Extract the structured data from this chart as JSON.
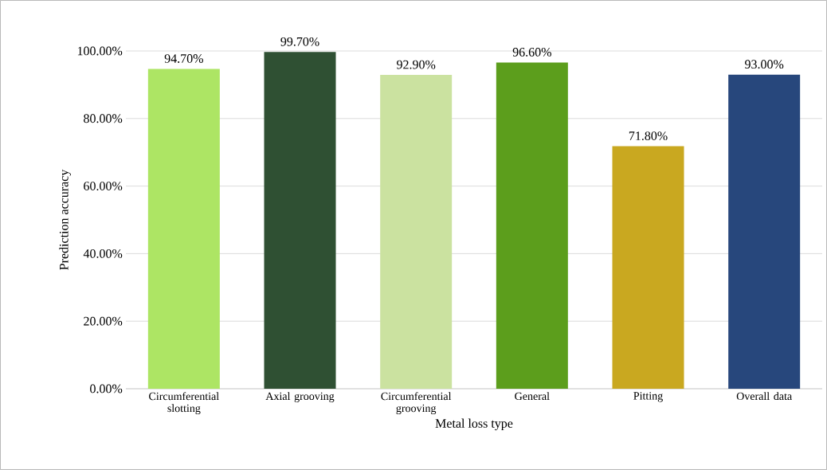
{
  "chart_data": {
    "type": "bar",
    "xlabel": "Metal loss type",
    "ylabel": "Prediction accuracy",
    "categories": [
      "Circumferential slotting",
      "Axial grooving",
      "Circumferential grooving",
      "General",
      "Pitting",
      "Overall data"
    ],
    "values": [
      94.7,
      99.7,
      92.9,
      96.6,
      71.8,
      93.0
    ],
    "colors": [
      "#ade564",
      "#2f5033",
      "#cbe2a0",
      "#5c9e1c",
      "#c9a820",
      "#27477c"
    ],
    "value_labels": [
      "94.70%",
      "99.70%",
      "92.90%",
      "96.60%",
      "71.80%",
      "93.00%"
    ],
    "ylim": [
      0,
      100
    ],
    "yticks": [
      {
        "value": 0,
        "label": "0.00%"
      },
      {
        "value": 20,
        "label": "20.00%"
      },
      {
        "value": 40,
        "label": "40.00%"
      },
      {
        "value": 60,
        "label": "60.00%"
      },
      {
        "value": 80,
        "label": "80.00%"
      },
      {
        "value": 100,
        "label": "100.00%"
      }
    ],
    "grid": "y"
  }
}
